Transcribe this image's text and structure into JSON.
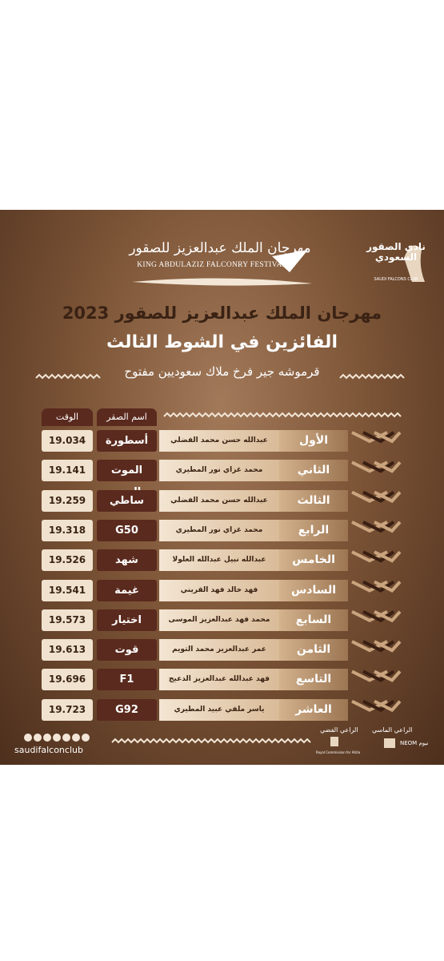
{
  "header": {
    "festival_logo_ar": "مهرجان الملك عبدالعزيز للصقور",
    "festival_logo_en": "KING ABDULAZIZ FALCONRY FESTIVAL",
    "club_logo_ar": "نادي الصقور السعودي",
    "club_logo_en": "SAUDI FALCONS CLUB"
  },
  "title": "مهرجان الملك عبدالعزيز للصقور 2023",
  "subtitle": "الفائزين في الشوط الثالث",
  "category": "قرموشه جير فرخ ملاك سعوديين مفتوح",
  "table": {
    "columns": [
      "اسم الصقر",
      "الوقت"
    ],
    "rows": [
      [
        "الأول",
        "عبدالله حسن محمد الفضلي",
        "أسطورة",
        "19.034"
      ],
      [
        "الثاني",
        "محمد غزاي نور المطيري",
        "الموت الحمر",
        "19.141"
      ],
      [
        "الثالث",
        "عبدالله حسن محمد الفضلي",
        "ساطي",
        "19.259"
      ],
      [
        "الرابع",
        "محمد غزاي نور المطيري",
        "G50",
        "19.318"
      ],
      [
        "الخامس",
        "عبدالله نبيل عبدالله العلولا",
        "شهد",
        "19.526"
      ],
      [
        "السادس",
        "فهد خالد فهد القريني",
        "غيمة",
        "19.541"
      ],
      [
        "السابع",
        "محمد فهد عبدالعزيز الموسى",
        "اختيار",
        "19.573"
      ],
      [
        "الثامن",
        "عمر عبدالعزيز محمد التويم",
        "قوت",
        "19.613"
      ],
      [
        "التاسع",
        "فهد عبدالله عبدالعزيز الدعيج",
        "F1",
        "19.696"
      ],
      [
        "العاشر",
        "ياسر ملفي عبيد المطيري",
        "G92",
        "19.723"
      ]
    ]
  },
  "footer": {
    "website": "saudifalconclub",
    "diamond_sponsor": "الراعي الماسي",
    "silver_sponsor": "الراعي الفضي",
    "neom": "نيوم NEOM",
    "alula": "Royal Commission for AlUla"
  }
}
